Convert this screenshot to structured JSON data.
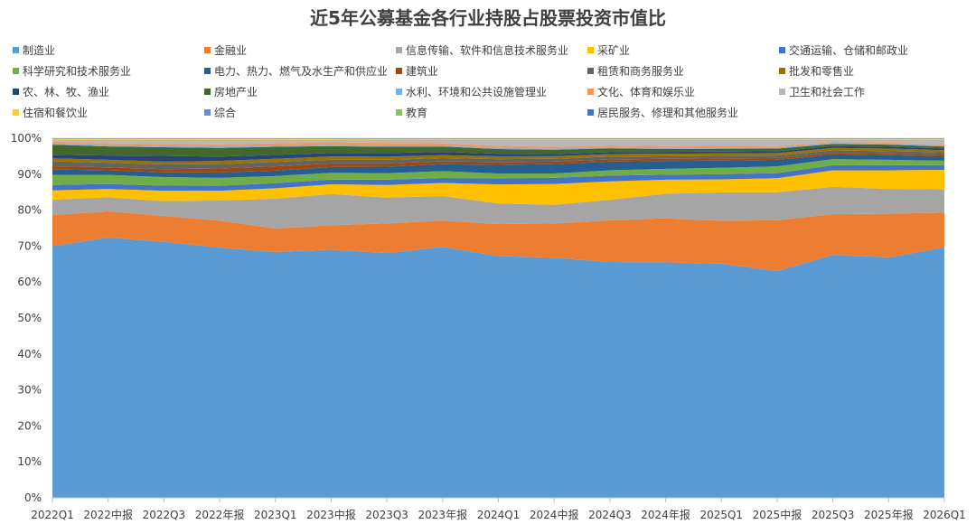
{
  "chart_data": {
    "type": "area",
    "stacked": "percent",
    "title": "近5年公募基金各行业持股占股票投资市值比",
    "categories": [
      "2022Q1",
      "2022中报",
      "2022Q3",
      "2022年报",
      "2023Q1",
      "2023中报",
      "2023Q3",
      "2023年报",
      "2024Q1",
      "2024中报",
      "2024Q3",
      "2024年报",
      "2025Q1",
      "2025中报",
      "2025Q3",
      "2025年报",
      "2026Q1"
    ],
    "ylim": [
      0,
      100
    ],
    "yticks": [
      "0%",
      "10%",
      "20%",
      "30%",
      "40%",
      "50%",
      "60%",
      "70%",
      "80%",
      "90%",
      "100%"
    ],
    "legend_position": "top",
    "series": [
      {
        "name": "制造业",
        "color": "#5B9BD5",
        "values": [
          70,
          72.3,
          71.2,
          69.5,
          68.3,
          69,
          68,
          69.5,
          67,
          66.7,
          65.5,
          65.3,
          64.9,
          63,
          67.5,
          66.8,
          69
        ]
      },
      {
        "name": "金融业",
        "color": "#ED7D31",
        "values": [
          8.6,
          7.3,
          7.2,
          7.5,
          6.5,
          6.8,
          8.2,
          7.3,
          8.9,
          9.5,
          11.6,
          12.2,
          11.9,
          14.1,
          11.3,
          12.1,
          9.6
        ]
      },
      {
        "name": "信息传输、软件和信息技术服务业",
        "color": "#A5A5A5",
        "values": [
          4.3,
          3.9,
          4.1,
          5.6,
          8.3,
          8.7,
          7.2,
          6.8,
          5.7,
          5.2,
          5.7,
          6.8,
          7.9,
          7.8,
          7.6,
          6.9,
          6.4
        ]
      },
      {
        "name": "采矿业",
        "color": "#FFC000",
        "values": [
          2.6,
          2.3,
          2.9,
          2.7,
          2.9,
          2.7,
          3.5,
          3.6,
          5.3,
          5.8,
          5.1,
          3.9,
          3.6,
          3.9,
          4.6,
          5.2,
          5.4
        ]
      },
      {
        "name": "交通运输、仓储和邮政业",
        "color": "#4472C4",
        "values": [
          1.5,
          1.4,
          1.4,
          1.4,
          1.4,
          1.3,
          1.5,
          1.4,
          1.7,
          1.7,
          1.6,
          1.4,
          1.4,
          1.4,
          1.4,
          1.4,
          1.3
        ]
      },
      {
        "name": "科学研究和技术服务业",
        "color": "#70AD47",
        "values": [
          2.8,
          2.5,
          2.4,
          2.2,
          2.0,
          1.9,
          1.8,
          1.9,
          1.3,
          1.2,
          1.5,
          1.6,
          1.8,
          1.9,
          1.7,
          1.5,
          1.2
        ]
      },
      {
        "name": "电力、热力、燃气及水生产和供应业",
        "color": "#255E91",
        "values": [
          1.5,
          1.3,
          1.3,
          1.5,
          1.5,
          1.6,
          1.8,
          1.9,
          2.4,
          2.6,
          2.4,
          2.2,
          2.0,
          1.8,
          1.3,
          1.3,
          1.2
        ]
      },
      {
        "name": "建筑业",
        "color": "#9E480E",
        "values": [
          0.9,
          0.8,
          0.9,
          1.1,
          1.2,
          1.0,
          0.9,
          0.8,
          0.8,
          0.7,
          0.6,
          0.6,
          0.6,
          0.5,
          0.5,
          0.5,
          0.5
        ]
      },
      {
        "name": "租赁和商务服务业",
        "color": "#636363",
        "values": [
          1.4,
          1.3,
          1.3,
          1.2,
          1.2,
          1.0,
          1.0,
          0.9,
          0.8,
          0.8,
          0.8,
          0.7,
          0.7,
          0.7,
          0.6,
          0.6,
          0.6
        ]
      },
      {
        "name": "批发和零售业",
        "color": "#997300",
        "values": [
          0.8,
          0.8,
          0.8,
          0.9,
          0.9,
          0.9,
          0.9,
          0.8,
          0.8,
          0.7,
          0.7,
          0.7,
          0.7,
          0.7,
          0.7,
          0.7,
          0.6
        ]
      },
      {
        "name": "农、林、牧、渔业",
        "color": "#264478",
        "values": [
          1.0,
          1.2,
          1.6,
          1.2,
          1.1,
          1.0,
          1.0,
          0.9,
          0.7,
          0.6,
          0.5,
          0.5,
          0.5,
          0.5,
          0.5,
          0.5,
          0.5
        ]
      },
      {
        "name": "房地产业",
        "color": "#43682B",
        "values": [
          2.8,
          2.5,
          2.4,
          2.4,
          2.2,
          1.9,
          1.7,
          1.5,
          1.3,
          1.2,
          1.1,
          0.8,
          0.8,
          0.7,
          0.6,
          0.6,
          0.5
        ]
      },
      {
        "name": "水利、环境和公共设施管理业",
        "color": "#7CAFDD",
        "values": [
          0.4,
          0.4,
          0.4,
          0.4,
          0.4,
          0.4,
          0.4,
          0.3,
          0.3,
          0.3,
          0.3,
          0.3,
          0.3,
          0.3,
          0.3,
          0.3,
          0.3
        ]
      },
      {
        "name": "文化、体育和娱乐业",
        "color": "#F1975A",
        "values": [
          0.5,
          0.5,
          0.5,
          0.6,
          0.6,
          0.7,
          0.7,
          0.6,
          0.6,
          0.5,
          0.5,
          0.5,
          0.5,
          0.4,
          0.3,
          0.3,
          0.3
        ]
      },
      {
        "name": "卫生和社会工作",
        "color": "#B7B7B7",
        "values": [
          0.5,
          1.0,
          1.2,
          1.3,
          1.0,
          0.7,
          1.0,
          1.1,
          1.8,
          2.1,
          1.7,
          1.9,
          1.8,
          1.9,
          0.7,
          0.9,
          1.4
        ]
      },
      {
        "name": "住宿和餐饮业",
        "color": "#FFCD33",
        "values": [
          0.2,
          0.2,
          0.2,
          0.2,
          0.2,
          0.2,
          0.1,
          0.1,
          0.1,
          0.1,
          0.1,
          0.1,
          0.1,
          0.1,
          0.1,
          0.1,
          0.1
        ]
      },
      {
        "name": "综合",
        "color": "#698ED0",
        "values": [
          0.1,
          0.1,
          0.1,
          0.1,
          0.1,
          0.1,
          0.1,
          0.1,
          0.1,
          0.1,
          0.1,
          0.1,
          0.1,
          0.1,
          0.1,
          0.1,
          0.1
        ]
      },
      {
        "name": "教育",
        "color": "#8CC168",
        "values": [
          0.05,
          0.05,
          0.05,
          0.05,
          0.05,
          0.05,
          0.05,
          0.05,
          0.05,
          0.05,
          0.05,
          0.05,
          0.05,
          0.05,
          0.05,
          0.05,
          0.05
        ]
      },
      {
        "name": "居民服务、修理和其他服务业",
        "color": "#327DC2",
        "values": [
          0.05,
          0.05,
          0.05,
          0.05,
          0.05,
          0.05,
          0.05,
          0.05,
          0.05,
          0.05,
          0.05,
          0.05,
          0.05,
          0.05,
          0.05,
          0.05,
          0.05
        ]
      }
    ]
  }
}
